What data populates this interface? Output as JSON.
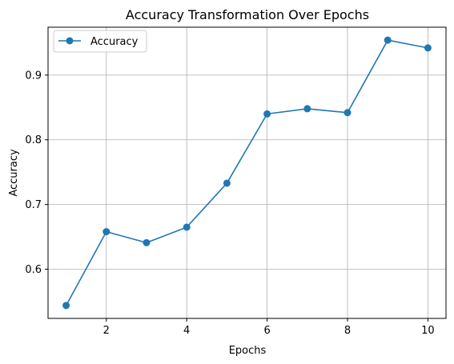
{
  "chart_data": {
    "type": "line",
    "title": "Accuracy Transformation Over Epochs",
    "xlabel": "Epochs",
    "ylabel": "Accuracy",
    "x": [
      1,
      2,
      3,
      4,
      5,
      6,
      7,
      8,
      9,
      10
    ],
    "series": [
      {
        "name": "Accuracy",
        "values": [
          0.544,
          0.658,
          0.641,
          0.665,
          0.733,
          0.84,
          0.848,
          0.842,
          0.954,
          0.942
        ],
        "color": "#1f77b4",
        "marker": "circle"
      }
    ],
    "xlim": [
      0.55,
      10.45
    ],
    "ylim": [
      0.524,
      0.974
    ],
    "xticks": [
      2,
      4,
      6,
      8,
      10
    ],
    "yticks": [
      0.6,
      0.7,
      0.8,
      0.9
    ],
    "ytick_labels": [
      "0.6",
      "0.7",
      "0.8",
      "0.9"
    ],
    "grid": true,
    "legend": "top-left"
  }
}
